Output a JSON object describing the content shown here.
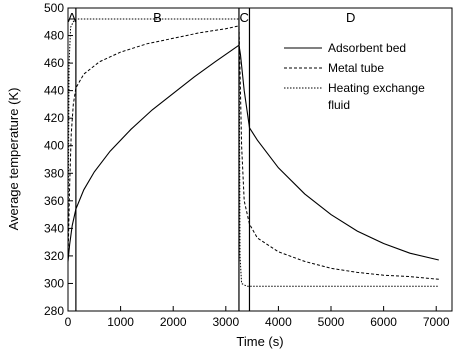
{
  "chart_data": {
    "type": "line",
    "xlabel": "Time (s)",
    "ylabel": "Average temperature (K)",
    "xlim": [
      0,
      7300
    ],
    "ylim": [
      280,
      500
    ],
    "xticks": [
      0,
      1000,
      2000,
      3000,
      4000,
      5000,
      6000,
      7000
    ],
    "yticks": [
      280,
      300,
      320,
      340,
      360,
      380,
      400,
      420,
      440,
      460,
      480,
      500
    ],
    "legend_position": "top-right",
    "regions": [
      {
        "label": "A",
        "x_start": 0,
        "x_end": 150
      },
      {
        "label": "B",
        "x_start": 150,
        "x_end": 3250
      },
      {
        "label": "C",
        "x_start": 3250,
        "x_end": 3450
      },
      {
        "label": "D",
        "x_start": 3450,
        "x_end": 7300
      }
    ],
    "series": [
      {
        "name": "Adsorbent bed",
        "dash": "solid",
        "x": [
          0,
          30,
          80,
          150,
          300,
          500,
          800,
          1200,
          1600,
          2000,
          2400,
          2800,
          3100,
          3250,
          3280,
          3350,
          3450,
          3600,
          4000,
          4500,
          5000,
          5500,
          6000,
          6500,
          7050
        ],
        "y": [
          316,
          328,
          342,
          354,
          368,
          381,
          396,
          412,
          426,
          438,
          450,
          461,
          469,
          473,
          466,
          440,
          413,
          404,
          384,
          365,
          350,
          338,
          329,
          322,
          317
        ]
      },
      {
        "name": "Metal tube",
        "dash": "dashed",
        "x": [
          0,
          30,
          60,
          100,
          150,
          300,
          600,
          1000,
          1500,
          2000,
          2500,
          3000,
          3250,
          3270,
          3300,
          3350,
          3450,
          3600,
          4000,
          4500,
          5000,
          5500,
          6000,
          6500,
          7050
        ],
        "y": [
          316,
          370,
          408,
          430,
          442,
          452,
          461,
          468,
          474,
          478,
          482,
          485,
          487,
          455,
          400,
          360,
          343,
          333,
          323,
          316,
          311,
          308,
          306,
          305,
          303
        ]
      },
      {
        "name": "Heating exchange fluid",
        "dash": "dotted",
        "x": [
          0,
          20,
          50,
          100,
          150,
          500,
          1000,
          2000,
          3000,
          3250,
          3260,
          3270,
          3300,
          3400,
          3600,
          4000,
          5000,
          6000,
          7050
        ],
        "y": [
          316,
          460,
          486,
          490,
          492,
          492,
          492,
          492,
          492,
          492,
          420,
          320,
          300,
          298,
          298,
          298,
          298,
          298,
          298
        ]
      }
    ]
  }
}
